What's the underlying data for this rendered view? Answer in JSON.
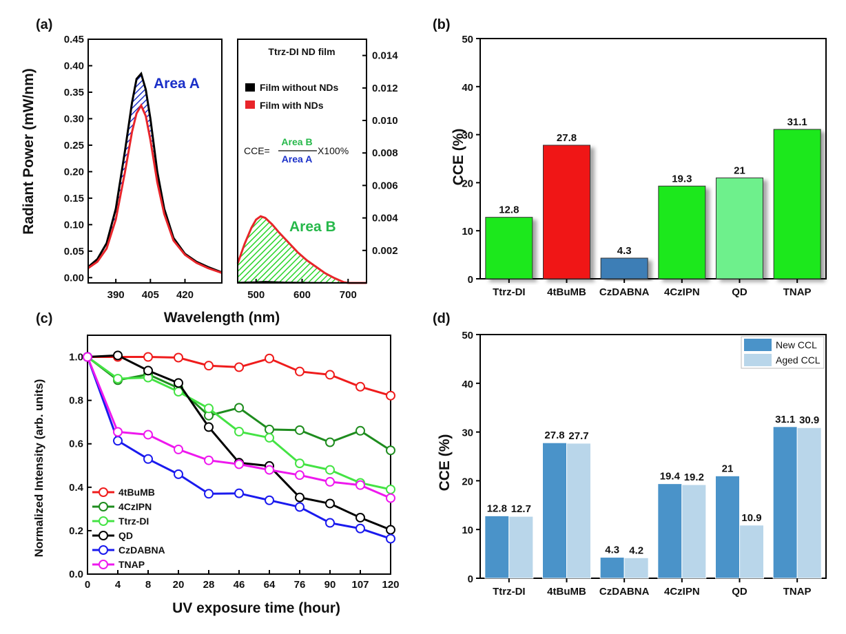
{
  "panels": {
    "a": "(a)",
    "b": "(b)",
    "c": "(c)",
    "d": "(d)"
  },
  "chart_data": [
    {
      "panel": "a",
      "type": "area",
      "xlabel": "Wavelength (nm)",
      "ylabel": "Radiant Power (mW/nm)",
      "left": {
        "xlim": [
          378,
          436
        ],
        "ylim": [
          -0.01,
          0.45
        ],
        "xticks": [
          "390",
          "405",
          "420"
        ],
        "yticks": [
          "0.00",
          "0.05",
          "0.10",
          "0.15",
          "0.20",
          "0.25",
          "0.30",
          "0.35",
          "0.40",
          "0.45"
        ],
        "annotation": "Area A",
        "series": [
          {
            "name": "Film without NDs",
            "color": "#000000",
            "x": [
              378,
              382,
              386,
              390,
              394,
              397,
              399,
              401,
              403,
              405,
              408,
              411,
              415,
              420,
              425,
              430,
              436
            ],
            "y": [
              0.02,
              0.035,
              0.065,
              0.13,
              0.24,
              0.33,
              0.375,
              0.385,
              0.355,
              0.3,
              0.2,
              0.13,
              0.075,
              0.045,
              0.03,
              0.02,
              0.01
            ]
          },
          {
            "name": "Film with NDs",
            "color": "#e8252a",
            "x": [
              378,
              382,
              386,
              390,
              394,
              397,
              399,
              401,
              403,
              405,
              408,
              411,
              415,
              420,
              425,
              430,
              436
            ],
            "y": [
              0.018,
              0.03,
              0.055,
              0.11,
              0.2,
              0.275,
              0.31,
              0.325,
              0.305,
              0.26,
              0.18,
              0.12,
              0.07,
              0.043,
              0.028,
              0.018,
              0.009
            ]
          }
        ]
      },
      "right": {
        "title": "Ttrz-DI ND film",
        "xlim": [
          460,
          740
        ],
        "ylim": [
          0,
          0.015
        ],
        "xticks": [
          "500",
          "600",
          "700"
        ],
        "yticks": [
          "0.002",
          "0.004",
          "0.006",
          "0.008",
          "0.010",
          "0.012",
          "0.014"
        ],
        "annotation": "Area B",
        "formula": {
          "prefix": "CCE=",
          "numerator": "Area B",
          "denominator": "Area A",
          "suffix": "X100%"
        },
        "series": [
          {
            "name": "Film with NDs",
            "color": "#e8252a",
            "x": [
              460,
              475,
              490,
              500,
              510,
              520,
              535,
              550,
              570,
              590,
              610,
              630,
              650,
              670,
              690,
              700,
              720,
              740
            ],
            "y": [
              0.0012,
              0.0024,
              0.0034,
              0.0039,
              0.0041,
              0.004,
              0.0036,
              0.0031,
              0.0025,
              0.0019,
              0.0014,
              0.001,
              0.0006,
              0.0003,
              5e-05,
              0,
              0,
              0
            ]
          },
          {
            "name": "Film without NDs",
            "color": "#000000",
            "x": [
              460,
              500,
              520,
              540,
              560,
              600,
              650,
              700,
              740
            ],
            "y": [
              2e-05,
              5e-05,
              8e-05,
              6e-05,
              4e-05,
              2e-05,
              1e-05,
              0,
              0
            ]
          }
        ]
      }
    },
    {
      "panel": "b",
      "type": "bar",
      "ylabel": "CCE (%)",
      "ylim": [
        0,
        50
      ],
      "yticks": [
        "0",
        "10",
        "20",
        "30",
        "40",
        "50"
      ],
      "categories": [
        "Ttrz-DI",
        "4tBuMB",
        "CzDABNA",
        "4CzIPN",
        "QD",
        "TNAP"
      ],
      "values": [
        12.8,
        27.8,
        4.3,
        19.3,
        21,
        31.1
      ],
      "labels": [
        "12.8",
        "27.8",
        "4.3",
        "19.3",
        "21",
        "31.1"
      ],
      "colors": [
        "#1ee81e",
        "#f01414",
        "#3c7eb6",
        "#1ee81e",
        "#6ef08c",
        "#1ee81e"
      ]
    },
    {
      "panel": "c",
      "type": "line",
      "xlabel": "UV exposure time (hour)",
      "ylabel": "Normalized Intensity (arb. units)",
      "ylim": [
        0,
        1.1
      ],
      "yticks": [
        "0.0",
        "0.2",
        "0.4",
        "0.6",
        "0.8",
        "1.0"
      ],
      "x": [
        "0",
        "4",
        "8",
        "20",
        "28",
        "46",
        "64",
        "76",
        "90",
        "107",
        "120"
      ],
      "series": [
        {
          "name": "4tBuMB",
          "color": "#ef1c1c",
          "values": [
            1.0,
            1.0,
            1.0,
            0.997,
            0.96,
            0.953,
            0.993,
            0.933,
            0.918,
            0.863,
            0.822
          ]
        },
        {
          "name": "4CzIPN",
          "color": "#1e8c1e",
          "values": [
            1.0,
            0.893,
            0.92,
            0.857,
            0.73,
            0.766,
            0.666,
            0.663,
            0.607,
            0.66,
            0.57
          ]
        },
        {
          "name": "Ttrz-DI",
          "color": "#44e344",
          "values": [
            1.0,
            0.9,
            0.905,
            0.84,
            0.763,
            0.656,
            0.628,
            0.51,
            0.48,
            0.42,
            0.39
          ]
        },
        {
          "name": "QD",
          "color": "#000000",
          "values": [
            1.0,
            1.007,
            0.937,
            0.88,
            0.677,
            0.513,
            0.498,
            0.353,
            0.325,
            0.26,
            0.204
          ]
        },
        {
          "name": "CzDABNA",
          "color": "#1a1aee",
          "values": [
            1.0,
            0.614,
            0.53,
            0.46,
            0.37,
            0.372,
            0.34,
            0.309,
            0.236,
            0.21,
            0.163
          ]
        },
        {
          "name": "TNAP",
          "color": "#ee18ee",
          "values": [
            1.0,
            0.655,
            0.642,
            0.574,
            0.524,
            0.506,
            0.48,
            0.456,
            0.425,
            0.41,
            0.35
          ]
        }
      ]
    },
    {
      "panel": "d",
      "type": "bar",
      "ylabel": "CCE (%)",
      "ylim": [
        0,
        50
      ],
      "yticks": [
        "0",
        "10",
        "20",
        "30",
        "40",
        "50"
      ],
      "categories": [
        "Ttrz-DI",
        "4tBuMB",
        "CzDABNA",
        "4CzIPN",
        "QD",
        "TNAP"
      ],
      "legend": "top-right",
      "series": [
        {
          "name": "New CCL",
          "color": "#4a93c9",
          "values": [
            12.8,
            27.8,
            4.3,
            19.4,
            21,
            31.1
          ],
          "labels": [
            "12.8",
            "27.8",
            "4.3",
            "19.4",
            "21",
            "31.1"
          ]
        },
        {
          "name": "Aged CCL",
          "color": "#b9d6ea",
          "values": [
            12.7,
            27.7,
            4.2,
            19.2,
            10.9,
            30.9
          ],
          "labels": [
            "12.7",
            "27.7",
            "4.2",
            "19.2",
            "10.9",
            "30.9"
          ]
        }
      ]
    }
  ]
}
